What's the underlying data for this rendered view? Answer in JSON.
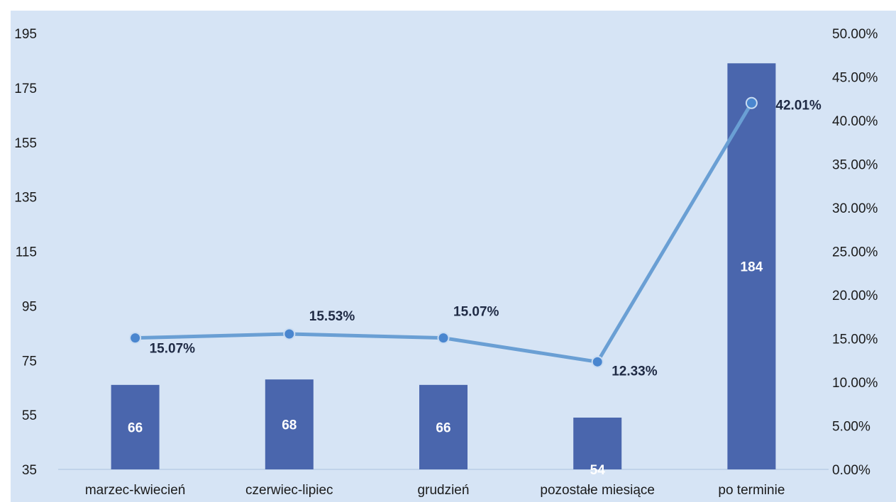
{
  "chart_data": {
    "type": "bar",
    "categories": [
      "marzec-kwiecień",
      "czerwiec-lipiec",
      "grudzień",
      "pozostałe miesiące",
      "po terminie"
    ],
    "series": [
      {
        "type": "bar",
        "axis": "left",
        "values": [
          66,
          68,
          66,
          54,
          184
        ],
        "labels": [
          "66",
          "68",
          "66",
          "54",
          "184"
        ]
      },
      {
        "type": "line",
        "axis": "right",
        "values": [
          15.07,
          15.53,
          15.07,
          12.33,
          42.01
        ],
        "labels": [
          "15.07%",
          "15.53%",
          "15.07%",
          "12.33%",
          "42.01%"
        ]
      }
    ],
    "y_left": {
      "min": 35,
      "max": 195,
      "ticks": [
        "195",
        "175",
        "155",
        "135",
        "115",
        "95",
        "75",
        "55",
        "35"
      ],
      "tick_values": [
        195,
        175,
        155,
        135,
        115,
        95,
        75,
        55,
        35
      ]
    },
    "y_right": {
      "min": 0,
      "max": 50,
      "ticks": [
        "50.00%",
        "45.00%",
        "40.00%",
        "35.00%",
        "30.00%",
        "25.00%",
        "20.00%",
        "15.00%",
        "10.00%",
        "5.00%",
        "0.00%"
      ],
      "tick_values": [
        50,
        45,
        40,
        35,
        30,
        25,
        20,
        15,
        10,
        5,
        0
      ]
    },
    "grid": false,
    "legend": "none",
    "colors": {
      "background": "#d6e4f5",
      "bar": "#4a66ad",
      "line": "#6a9fd4",
      "marker": "#4a86cf",
      "marker_edge": "#c9dcf2",
      "axis_line": "#b9cde6"
    }
  }
}
